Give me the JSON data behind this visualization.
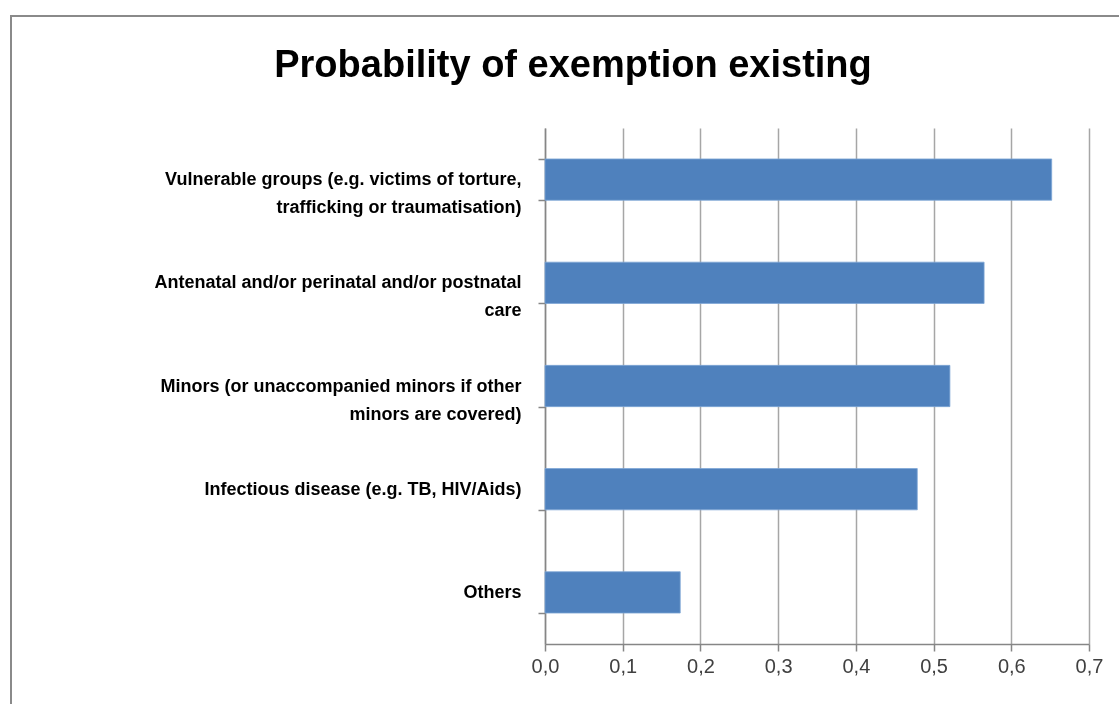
{
  "chart_data": {
    "type": "bar",
    "orientation": "horizontal",
    "title": "Probability of exemption existing",
    "categories": [
      "Vulnerable groups (e.g. victims of torture, trafficking or traumatisation)",
      "Antenatal and/or perinatal and/or postnatal care",
      "Minors (or unaccompanied minors if other minors are covered)",
      "Infectious disease (e.g. TB, HIV/Aids)",
      "Others"
    ],
    "values": [
      0.652,
      0.565,
      0.521,
      0.479,
      0.174
    ],
    "color": "#4f81bd",
    "xlim": [
      0,
      0.7
    ],
    "xticks": [
      {
        "value": 0,
        "label": "0,0"
      },
      {
        "value": 0.1,
        "label": "0,1"
      },
      {
        "value": 0.2,
        "label": "0,2"
      },
      {
        "value": 0.3,
        "label": "0,3"
      },
      {
        "value": 0.4,
        "label": "0,4"
      },
      {
        "value": 0.5,
        "label": "0,5"
      },
      {
        "value": 0.6,
        "label": "0,6"
      },
      {
        "value": 0.7,
        "label": "0,7"
      }
    ],
    "grid": "x"
  }
}
